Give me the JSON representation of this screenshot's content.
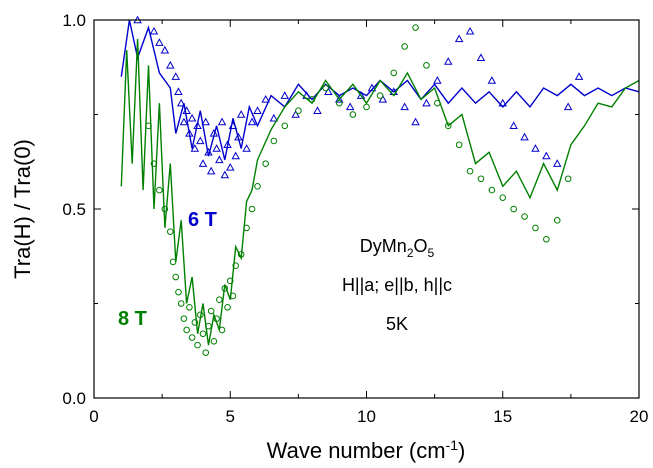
{
  "chart_data": {
    "type": "scatter",
    "title": "",
    "xlabel": "Wave number (cm",
    "xlabel_sup": "-1",
    "xlabel_close": ")",
    "ylabel": "Tra(H) / Tra(0)",
    "xlim": [
      0,
      20
    ],
    "ylim": [
      0.0,
      1.0
    ],
    "x_ticks": [
      0,
      5,
      10,
      15,
      20
    ],
    "x_tick_labels": [
      "0",
      "5",
      "10",
      "15",
      "20"
    ],
    "y_ticks": [
      0.0,
      0.5,
      1.0
    ],
    "y_tick_labels": [
      "0.0",
      "0.5",
      "1.0"
    ],
    "grid": false,
    "legend": "none",
    "annotations": {
      "compound": "DyMn",
      "compound_sub1": "2",
      "compound_mid": "O",
      "compound_sub2": "5",
      "geometry": "H||a; e||b, h||c",
      "temperature": "5K"
    },
    "series": [
      {
        "name": "6 T",
        "color": "#0000cc",
        "marker": "triangle",
        "points": [
          [
            1.6,
            1.0
          ],
          [
            2.2,
            0.97
          ],
          [
            2.4,
            0.94
          ],
          [
            2.6,
            0.92
          ],
          [
            2.8,
            0.88
          ],
          [
            3.0,
            0.85
          ],
          [
            3.1,
            0.81
          ],
          [
            3.2,
            0.78
          ],
          [
            3.3,
            0.73
          ],
          [
            3.4,
            0.76
          ],
          [
            3.5,
            0.7
          ],
          [
            3.6,
            0.74
          ],
          [
            3.7,
            0.66
          ],
          [
            3.8,
            0.72
          ],
          [
            3.9,
            0.68
          ],
          [
            4.0,
            0.62
          ],
          [
            4.1,
            0.73
          ],
          [
            4.2,
            0.65
          ],
          [
            4.3,
            0.6
          ],
          [
            4.4,
            0.7
          ],
          [
            4.5,
            0.66
          ],
          [
            4.6,
            0.63
          ],
          [
            4.7,
            0.73
          ],
          [
            4.8,
            0.59
          ],
          [
            4.9,
            0.67
          ],
          [
            5.0,
            0.61
          ],
          [
            5.1,
            0.72
          ],
          [
            5.2,
            0.64
          ],
          [
            5.3,
            0.69
          ],
          [
            5.4,
            0.75
          ],
          [
            5.6,
            0.66
          ],
          [
            5.8,
            0.73
          ],
          [
            6.0,
            0.76
          ],
          [
            6.3,
            0.79
          ],
          [
            6.6,
            0.74
          ],
          [
            7.0,
            0.8
          ],
          [
            7.4,
            0.75
          ],
          [
            7.8,
            0.8
          ],
          [
            8.2,
            0.76
          ],
          [
            8.6,
            0.81
          ],
          [
            9.0,
            0.79
          ],
          [
            9.4,
            0.77
          ],
          [
            9.8,
            0.8
          ],
          [
            10.2,
            0.82
          ],
          [
            10.6,
            0.79
          ],
          [
            11.0,
            0.81
          ],
          [
            11.4,
            0.77
          ],
          [
            11.8,
            0.73
          ],
          [
            12.2,
            0.78
          ],
          [
            12.6,
            0.84
          ],
          [
            13.0,
            0.89
          ],
          [
            13.4,
            0.95
          ],
          [
            13.8,
            0.97
          ],
          [
            14.2,
            0.9
          ],
          [
            14.6,
            0.84
          ],
          [
            15.0,
            0.78
          ],
          [
            15.4,
            0.72
          ],
          [
            15.8,
            0.69
          ],
          [
            16.2,
            0.66
          ],
          [
            16.6,
            0.64
          ],
          [
            17.0,
            0.62
          ],
          [
            17.4,
            0.77
          ],
          [
            17.8,
            0.85
          ]
        ],
        "curve": [
          [
            1.0,
            0.85
          ],
          [
            1.3,
            1.0
          ],
          [
            1.6,
            0.9
          ],
          [
            2.0,
            0.98
          ],
          [
            2.4,
            0.86
          ],
          [
            2.8,
            0.82
          ],
          [
            3.0,
            0.7
          ],
          [
            3.3,
            0.78
          ],
          [
            3.6,
            0.66
          ],
          [
            3.9,
            0.76
          ],
          [
            4.2,
            0.64
          ],
          [
            4.5,
            0.72
          ],
          [
            4.8,
            0.63
          ],
          [
            5.1,
            0.74
          ],
          [
            5.4,
            0.66
          ],
          [
            5.7,
            0.77
          ],
          [
            6.0,
            0.72
          ],
          [
            6.5,
            0.8
          ],
          [
            7.0,
            0.77
          ],
          [
            7.5,
            0.83
          ],
          [
            8.0,
            0.79
          ],
          [
            8.5,
            0.83
          ],
          [
            9.0,
            0.8
          ],
          [
            9.5,
            0.82
          ],
          [
            10.0,
            0.8
          ],
          [
            10.5,
            0.84
          ],
          [
            11.0,
            0.81
          ],
          [
            11.5,
            0.84
          ],
          [
            12.0,
            0.79
          ],
          [
            12.5,
            0.83
          ],
          [
            13.0,
            0.78
          ],
          [
            13.5,
            0.82
          ],
          [
            14.0,
            0.78
          ],
          [
            14.5,
            0.81
          ],
          [
            15.0,
            0.77
          ],
          [
            15.5,
            0.81
          ],
          [
            16.0,
            0.77
          ],
          [
            16.5,
            0.82
          ],
          [
            17.0,
            0.8
          ],
          [
            17.5,
            0.83
          ],
          [
            18.0,
            0.8
          ],
          [
            18.5,
            0.82
          ],
          [
            19.0,
            0.8
          ],
          [
            19.5,
            0.82
          ],
          [
            20.0,
            0.81
          ]
        ]
      },
      {
        "name": "8 T",
        "color": "#008000",
        "marker": "circle",
        "points": [
          [
            2.0,
            0.72
          ],
          [
            2.2,
            0.62
          ],
          [
            2.4,
            0.55
          ],
          [
            2.6,
            0.5
          ],
          [
            2.8,
            0.44
          ],
          [
            2.9,
            0.36
          ],
          [
            3.0,
            0.32
          ],
          [
            3.1,
            0.28
          ],
          [
            3.2,
            0.25
          ],
          [
            3.3,
            0.21
          ],
          [
            3.4,
            0.18
          ],
          [
            3.5,
            0.24
          ],
          [
            3.6,
            0.16
          ],
          [
            3.7,
            0.2
          ],
          [
            3.8,
            0.14
          ],
          [
            3.9,
            0.22
          ],
          [
            4.0,
            0.17
          ],
          [
            4.1,
            0.12
          ],
          [
            4.2,
            0.19
          ],
          [
            4.3,
            0.23
          ],
          [
            4.4,
            0.15
          ],
          [
            4.5,
            0.21
          ],
          [
            4.6,
            0.26
          ],
          [
            4.7,
            0.18
          ],
          [
            4.8,
            0.29
          ],
          [
            4.9,
            0.24
          ],
          [
            5.0,
            0.31
          ],
          [
            5.1,
            0.27
          ],
          [
            5.2,
            0.35
          ],
          [
            5.4,
            0.38
          ],
          [
            5.6,
            0.45
          ],
          [
            5.8,
            0.5
          ],
          [
            6.0,
            0.56
          ],
          [
            6.3,
            0.62
          ],
          [
            6.6,
            0.68
          ],
          [
            7.0,
            0.72
          ],
          [
            7.5,
            0.76
          ],
          [
            8.0,
            0.79
          ],
          [
            8.5,
            0.82
          ],
          [
            9.0,
            0.78
          ],
          [
            9.5,
            0.75
          ],
          [
            10.0,
            0.77
          ],
          [
            10.5,
            0.8
          ],
          [
            11.0,
            0.86
          ],
          [
            11.4,
            0.93
          ],
          [
            11.8,
            0.98
          ],
          [
            12.2,
            0.88
          ],
          [
            12.6,
            0.78
          ],
          [
            13.0,
            0.72
          ],
          [
            13.4,
            0.67
          ],
          [
            13.8,
            0.6
          ],
          [
            14.2,
            0.58
          ],
          [
            14.6,
            0.55
          ],
          [
            15.0,
            0.53
          ],
          [
            15.4,
            0.5
          ],
          [
            15.8,
            0.48
          ],
          [
            16.2,
            0.45
          ],
          [
            16.6,
            0.42
          ],
          [
            17.0,
            0.47
          ],
          [
            17.4,
            0.58
          ]
        ],
        "curve": [
          [
            1.0,
            0.56
          ],
          [
            1.2,
            0.92
          ],
          [
            1.4,
            0.62
          ],
          [
            1.6,
            0.95
          ],
          [
            1.8,
            0.55
          ],
          [
            2.0,
            0.88
          ],
          [
            2.2,
            0.5
          ],
          [
            2.4,
            0.78
          ],
          [
            2.6,
            0.45
          ],
          [
            2.8,
            0.62
          ],
          [
            3.0,
            0.36
          ],
          [
            3.2,
            0.47
          ],
          [
            3.4,
            0.25
          ],
          [
            3.6,
            0.32
          ],
          [
            3.8,
            0.17
          ],
          [
            4.0,
            0.25
          ],
          [
            4.2,
            0.14
          ],
          [
            4.4,
            0.22
          ],
          [
            4.6,
            0.18
          ],
          [
            4.8,
            0.3
          ],
          [
            5.0,
            0.26
          ],
          [
            5.2,
            0.4
          ],
          [
            5.4,
            0.37
          ],
          [
            5.6,
            0.52
          ],
          [
            5.8,
            0.55
          ],
          [
            6.0,
            0.63
          ],
          [
            6.5,
            0.71
          ],
          [
            7.0,
            0.77
          ],
          [
            7.5,
            0.81
          ],
          [
            8.0,
            0.78
          ],
          [
            8.5,
            0.84
          ],
          [
            9.0,
            0.79
          ],
          [
            9.5,
            0.83
          ],
          [
            10.0,
            0.78
          ],
          [
            10.5,
            0.84
          ],
          [
            11.0,
            0.8
          ],
          [
            11.5,
            0.86
          ],
          [
            12.0,
            0.79
          ],
          [
            12.5,
            0.82
          ],
          [
            13.0,
            0.72
          ],
          [
            13.5,
            0.75
          ],
          [
            14.0,
            0.62
          ],
          [
            14.5,
            0.65
          ],
          [
            15.0,
            0.56
          ],
          [
            15.5,
            0.6
          ],
          [
            16.0,
            0.53
          ],
          [
            16.5,
            0.62
          ],
          [
            17.0,
            0.55
          ],
          [
            17.5,
            0.67
          ],
          [
            18.0,
            0.72
          ],
          [
            18.5,
            0.78
          ],
          [
            19.0,
            0.77
          ],
          [
            19.5,
            0.82
          ],
          [
            20.0,
            0.84
          ]
        ]
      }
    ]
  }
}
